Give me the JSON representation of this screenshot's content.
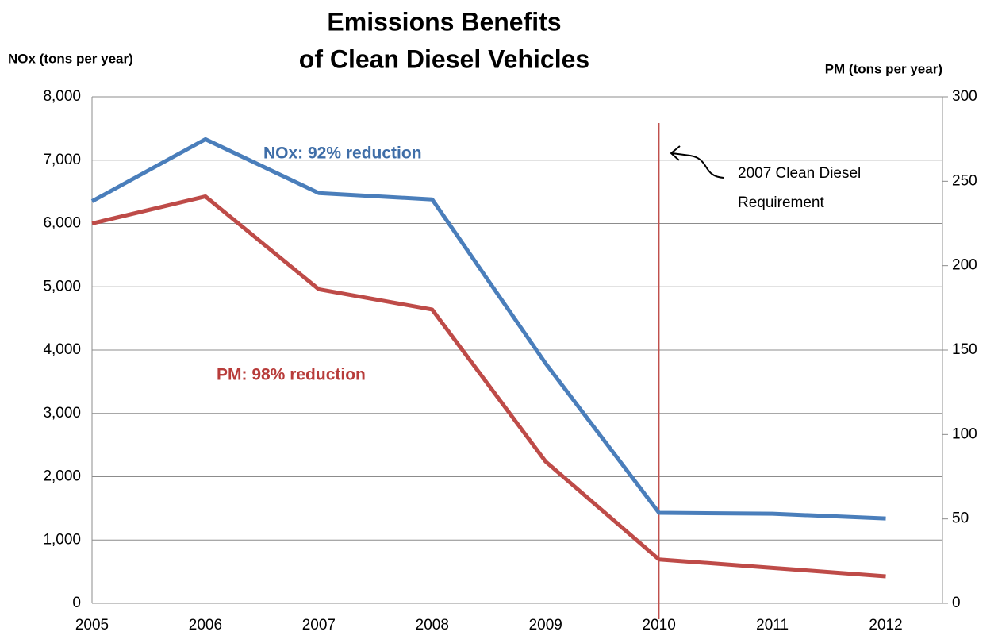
{
  "chart_data": {
    "type": "line",
    "title": [
      "Emissions Benefits",
      "of Clean Diesel Vehicles"
    ],
    "y_label": "NOx (tons per year)",
    "y2_label": "PM (tons per year)",
    "x": [
      2005,
      2006,
      2007,
      2008,
      2009,
      2010,
      2011,
      2012
    ],
    "xlim": [
      2005,
      2012.5
    ],
    "xticks": [
      2005,
      2006,
      2007,
      2008,
      2009,
      2010,
      2011,
      2012
    ],
    "ylim": [
      0,
      8000
    ],
    "yticks": [
      0,
      {
        "value": 1000,
        "label": "1,000"
      },
      {
        "value": 2000,
        "label": "2,000"
      },
      {
        "value": 3000,
        "label": "3,000"
      },
      {
        "value": 4000,
        "label": "4,000"
      },
      {
        "value": 5000,
        "label": "5,000"
      },
      {
        "value": 6000,
        "label": "6,000"
      },
      {
        "value": 7000,
        "label": "7,000"
      },
      {
        "value": 8000,
        "label": "8,000"
      }
    ],
    "y2lim": [
      0,
      300
    ],
    "y2ticks": [
      0,
      50,
      100,
      150,
      200,
      250,
      300
    ],
    "grid": true,
    "series": [
      {
        "name": "NOx",
        "color": "#4a7ebb",
        "values": [
          6350,
          7330,
          6480,
          6380,
          3790,
          1430,
          1415,
          1340
        ]
      },
      {
        "name": "PM",
        "color": "#be4b48",
        "axis": "y2",
        "values": [
          225,
          241,
          186,
          174,
          84,
          26,
          21,
          16
        ]
      }
    ],
    "annotations": [
      {
        "text": "NOx: 92% reduction",
        "color": "#3f6ea8"
      },
      {
        "text": "PM: 98% reduction",
        "color": "#b83c3a"
      },
      {
        "lines": [
          "2007 Clean Diesel",
          "Requirement"
        ]
      }
    ],
    "vline": {
      "x": 2010,
      "color": "#c0504d"
    }
  }
}
